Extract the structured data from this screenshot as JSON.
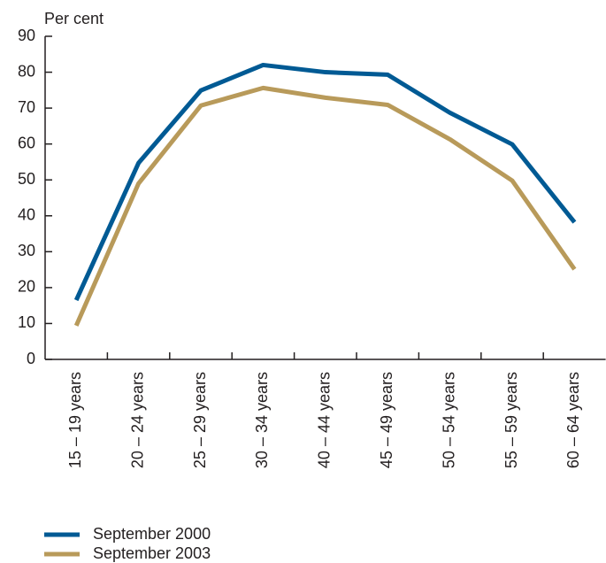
{
  "chart_data": {
    "type": "line",
    "y_label": "Per cent",
    "categories": [
      "15 – 19 years",
      "20 – 24 years",
      "25 – 29 years",
      "30 – 34 years",
      "40 – 44 years",
      "45 – 49 years",
      "50 – 54 years",
      "55 – 59 years",
      "60 – 64 years"
    ],
    "series": [
      {
        "name": "September 2000",
        "color": "#005a94",
        "values": [
          16.5,
          54.7,
          74.9,
          82,
          80,
          79.3,
          68.7,
          59.9,
          38.2
        ]
      },
      {
        "name": "September 2003",
        "color": "#b89a5a",
        "values": [
          9.4,
          49,
          70.7,
          75.6,
          72.9,
          70.9,
          61.3,
          49.8,
          25.1
        ]
      }
    ],
    "ylim": [
      0,
      90
    ],
    "yticks": [
      0,
      10,
      20,
      30,
      40,
      50,
      60,
      70,
      80,
      90
    ],
    "grid": false
  }
}
